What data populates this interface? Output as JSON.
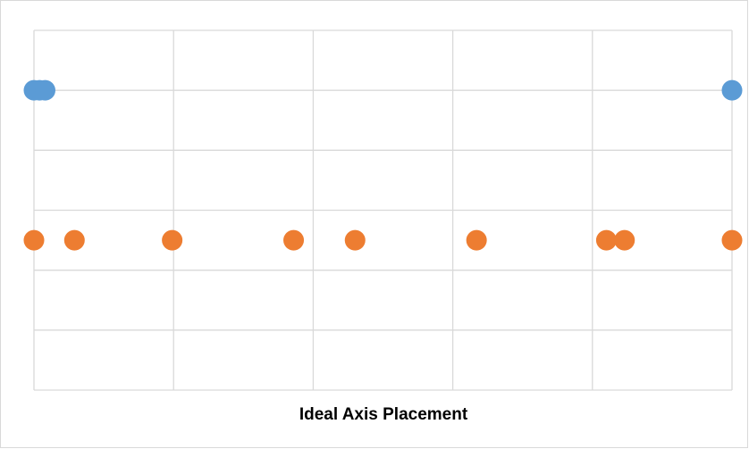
{
  "chart_data": {
    "type": "scatter",
    "title": "",
    "xlabel": "Ideal Axis Placement",
    "ylabel": "",
    "xlim": [
      0,
      5
    ],
    "ylim": [
      0,
      3
    ],
    "x_ticks": [
      0,
      1,
      2,
      3,
      4,
      5
    ],
    "y_ticks": [
      0,
      0.5,
      1,
      1.5,
      2,
      2.5,
      3
    ],
    "tick_labels_shown": false,
    "grid": true,
    "legend": "none",
    "series": [
      {
        "color": "#5B9BD5",
        "points": [
          {
            "x": 0.0,
            "y": 2.5
          },
          {
            "x": 0.04,
            "y": 2.5
          },
          {
            "x": 0.08,
            "y": 2.5
          },
          {
            "x": 5.0,
            "y": 2.5
          }
        ]
      },
      {
        "color": "#ED7D31",
        "points": [
          {
            "x": 0.0,
            "y": 1.25
          },
          {
            "x": 0.29,
            "y": 1.25
          },
          {
            "x": 0.99,
            "y": 1.25
          },
          {
            "x": 1.86,
            "y": 1.25
          },
          {
            "x": 2.3,
            "y": 1.25
          },
          {
            "x": 3.17,
            "y": 1.25
          },
          {
            "x": 4.1,
            "y": 1.25
          },
          {
            "x": 4.23,
            "y": 1.25
          },
          {
            "x": 5.0,
            "y": 1.25
          }
        ]
      }
    ]
  }
}
